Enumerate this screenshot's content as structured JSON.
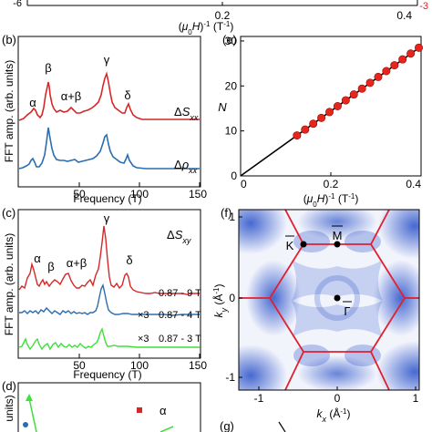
{
  "top_strip": {
    "tick_left": "-6",
    "tick_mid": "0.2",
    "tick_right": "0.4",
    "tick_right_red": "-3",
    "xlabel": "(μ0H)-1 (T-1)"
  },
  "panel_b": {
    "label": "(b)",
    "ylabel": "FFT amp. (arb. units)",
    "xlabel": "Frequency (T)",
    "xticks": [
      "50",
      "100",
      "150"
    ],
    "peaks": [
      "α",
      "β",
      "α+β",
      "γ",
      "δ"
    ],
    "legend_top": "ΔSxx",
    "legend_bottom": "Δρxx",
    "colors": {
      "sxx": "#d62728",
      "rho": "#2a6db0"
    }
  },
  "panel_c": {
    "label": "(c)",
    "ylabel": "FFT amp. (arb. units)",
    "xlabel": "Frequency (T)",
    "xticks": [
      "50",
      "100",
      "150"
    ],
    "peaks": [
      "α",
      "β",
      "α+β",
      "γ",
      "δ"
    ],
    "title": "ΔSxy",
    "curve_labels": [
      "0.87 - 9 T",
      "0.87 - 4 T",
      "0.87 - 3 T"
    ],
    "multipliers": [
      "×3",
      "×3"
    ],
    "colors": {
      "c9": "#d62728",
      "c4": "#2a6db0",
      "c3": "#3fe03a"
    }
  },
  "panel_d": {
    "label": "(d)",
    "ylabel_fragment": "units)",
    "legend": [
      "α"
    ],
    "colors": {
      "alpha": "#d62728",
      "beta": "#3fe03a",
      "dot": "#2a6db0"
    }
  },
  "panel_e": {
    "label": "(e)",
    "ylabel": "N",
    "xlabel": "(μ0H)-1 (T-1)",
    "chart_data": {
      "type": "scatter",
      "title": "",
      "xlabel": "(μ0H)-1 (T-1)",
      "ylabel": "N",
      "xlim": [
        0,
        0.4
      ],
      "ylim": [
        0,
        31
      ],
      "xticks": [
        "0",
        "0.2",
        "0.4"
      ],
      "yticks": [
        "0",
        "10",
        "20",
        "30"
      ],
      "x": [
        0.125,
        0.143,
        0.161,
        0.179,
        0.197,
        0.215,
        0.233,
        0.251,
        0.269,
        0.287,
        0.305,
        0.323,
        0.341,
        0.359,
        0.377,
        0.395
      ],
      "y": [
        9,
        10.3,
        11.6,
        12.9,
        14.2,
        15.5,
        16.8,
        18.1,
        19.4,
        20.7,
        22,
        23.3,
        24.6,
        25.9,
        27.2,
        28.5
      ],
      "fit_line": {
        "x": [
          0,
          0.4
        ],
        "y": [
          0,
          28.8
        ]
      },
      "colors": {
        "points": "#e8251c",
        "line": "#000000"
      }
    }
  },
  "panel_f": {
    "label": "(f)",
    "ylabel": "ky (Å-1)",
    "xlabel": "kx (Å-1)",
    "xticks": [
      "-1",
      "0",
      "1"
    ],
    "yticks": [
      "1",
      "0",
      "-1"
    ],
    "points": [
      "K",
      "M",
      "Γ"
    ],
    "colors": {
      "bz": "#e02030",
      "intensity": "#2850c8"
    }
  },
  "panel_g": {
    "label": "(g)"
  }
}
